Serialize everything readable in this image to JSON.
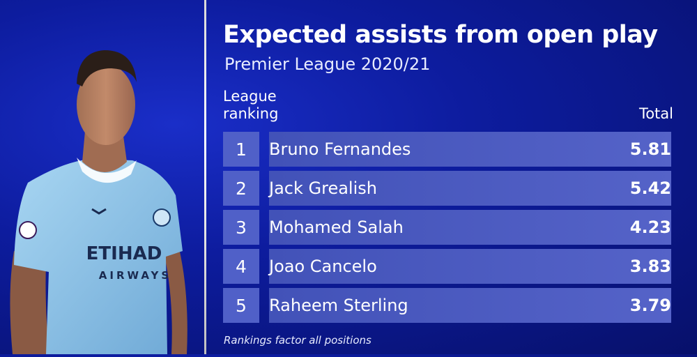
{
  "title": "Expected assists from open play",
  "subtitle": "Premier League 2020/21",
  "columns": {
    "ranking_line1": "League",
    "ranking_line2": "ranking",
    "total": "Total"
  },
  "rows": [
    {
      "rank": "1",
      "player": "Bruno Fernandes",
      "total": "5.81"
    },
    {
      "rank": "2",
      "player": "Jack Grealish",
      "total": "5.42"
    },
    {
      "rank": "3",
      "player": "Mohamed Salah",
      "total": "4.23"
    },
    {
      "rank": "4",
      "player": "Joao Cancelo",
      "total": "3.83"
    },
    {
      "rank": "5",
      "player": "Raheem Sterling",
      "total": "3.79"
    }
  ],
  "footnote": "Rankings factor all positions",
  "player_image": {
    "shirt_sponsor_line1": "ETIHAD",
    "shirt_sponsor_line2": "AIRWAYS"
  },
  "colors": {
    "background": "#0d1c9e",
    "rank_box": "#5060c8",
    "bar": "#4a59c0",
    "shirt": "#8ec5ea"
  }
}
